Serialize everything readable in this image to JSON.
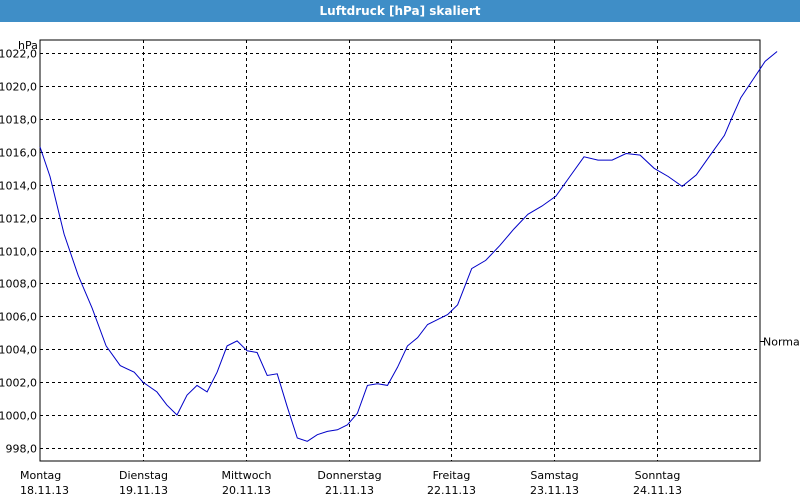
{
  "window": {
    "title": "Luftdruck [hPa] skaliert"
  },
  "colors": {
    "titlebar": "#3f8ec7",
    "line": "#0000c8",
    "grid": "#000000"
  },
  "chart_data": {
    "type": "line",
    "title": "Luftdruck [hPa] skaliert",
    "ylabel": "hPa",
    "ylim": [
      997.2,
      1022.8
    ],
    "grid": true,
    "y_ticks": [
      998,
      1000,
      1002,
      1004,
      1006,
      1008,
      1010,
      1012,
      1014,
      1016,
      1018,
      1020,
      1022
    ],
    "y_tick_labels": [
      "998,0",
      "1000,0",
      "1002,0",
      "1004,0",
      "1006,0",
      "1008,0",
      "1010,0",
      "1012,0",
      "1014,0",
      "1016,0",
      "1018,0",
      "1020,0",
      "1022,0"
    ],
    "xlim": [
      "18.11.13 00:00",
      "25.11.13 00:00"
    ],
    "x_ticks": [
      {
        "weekday": "Montag",
        "date": "18.11.13"
      },
      {
        "weekday": "Dienstag",
        "date": "19.11.13"
      },
      {
        "weekday": "Mittwoch",
        "date": "20.11.13"
      },
      {
        "weekday": "Donnerstag",
        "date": "21.11.13"
      },
      {
        "weekday": "Freitag",
        "date": "22.11.13"
      },
      {
        "weekday": "Samstag",
        "date": "23.11.13"
      },
      {
        "weekday": "Sonntag",
        "date": "24.11.13"
      }
    ],
    "reference_line": {
      "label": "Normal",
      "value": 1004.5
    },
    "x": [
      "18.11.13 00:00",
      "18.11.13 02:20",
      "18.11.13 05:37",
      "18.11.13 08:53",
      "18.11.13 12:10",
      "18.11.13 15:26",
      "18.11.13 18:43",
      "18.11.13 21:59",
      "19.11.13 00:00",
      "19.11.13 03:17",
      "19.11.13 05:37",
      "19.11.13 07:58",
      "19.11.13 10:18",
      "19.11.13 12:38",
      "19.11.13 14:59",
      "19.11.13 17:19",
      "19.11.13 19:39",
      "19.11.13 22:00",
      "20.11.13 00:20",
      "20.11.13 02:40",
      "20.11.13 05:01",
      "20.11.13 07:21",
      "20.11.13 09:41",
      "20.11.13 12:02",
      "20.11.13 14:22",
      "20.11.13 16:42",
      "20.11.13 19:03",
      "20.11.13 21:23",
      "20.11.13 23:43",
      "21.11.13 02:04",
      "21.11.13 04:24",
      "21.11.13 06:44",
      "21.11.13 09:05",
      "21.11.13 11:25",
      "21.11.13 13:45",
      "21.11.13 16:06",
      "21.11.13 18:26",
      "21.11.13 20:46",
      "21.11.13 23:07",
      "22.11.13 01:27",
      "22.11.13 04:44",
      "22.11.13 08:00",
      "22.11.13 11:17",
      "22.11.13 14:33",
      "22.11.13 17:50",
      "22.11.13 21:06",
      "23.11.13 00:23",
      "23.11.13 03:39",
      "23.11.13 06:56",
      "23.11.13 10:12",
      "23.11.13 13:29",
      "23.11.13 16:45",
      "23.11.13 20:02",
      "23.11.13 23:18",
      "24.11.13 02:35",
      "24.11.13 05:51",
      "24.11.13 09:08",
      "24.11.13 12:24",
      "24.11.13 15:41",
      "24.11.13 17:29",
      "24.11.13 19:32",
      "24.11.13 22:22",
      "25.11.13 01:11",
      "25.11.13 04:00"
    ],
    "series": [
      {
        "values": [
          1016.3,
          1014.5,
          1011.0,
          1008.5,
          1006.5,
          1004.2,
          1003.0,
          1002.6,
          1002.0,
          1001.4,
          1000.6,
          1000.0,
          1001.2,
          1001.8,
          1001.4,
          1002.6,
          1004.2,
          1004.5,
          1003.9,
          1003.8,
          1002.4,
          1002.5,
          1000.5,
          998.6,
          998.4,
          998.8,
          999.0,
          999.1,
          999.4,
          1000.1,
          1001.8,
          1001.9,
          1001.8,
          1002.9,
          1004.2,
          1004.7,
          1005.5,
          1005.8,
          1006.1,
          1006.7,
          1008.9,
          1009.4,
          1010.3,
          1011.3,
          1012.2,
          1012.7,
          1013.3,
          1014.5,
          1015.7,
          1015.5,
          1015.5,
          1015.9,
          1015.8,
          1015.0,
          1014.5,
          1013.9,
          1014.6,
          1015.8,
          1017.0,
          1018.1,
          1019.3,
          1020.4,
          1021.5,
          1022.1
        ]
      }
    ]
  }
}
